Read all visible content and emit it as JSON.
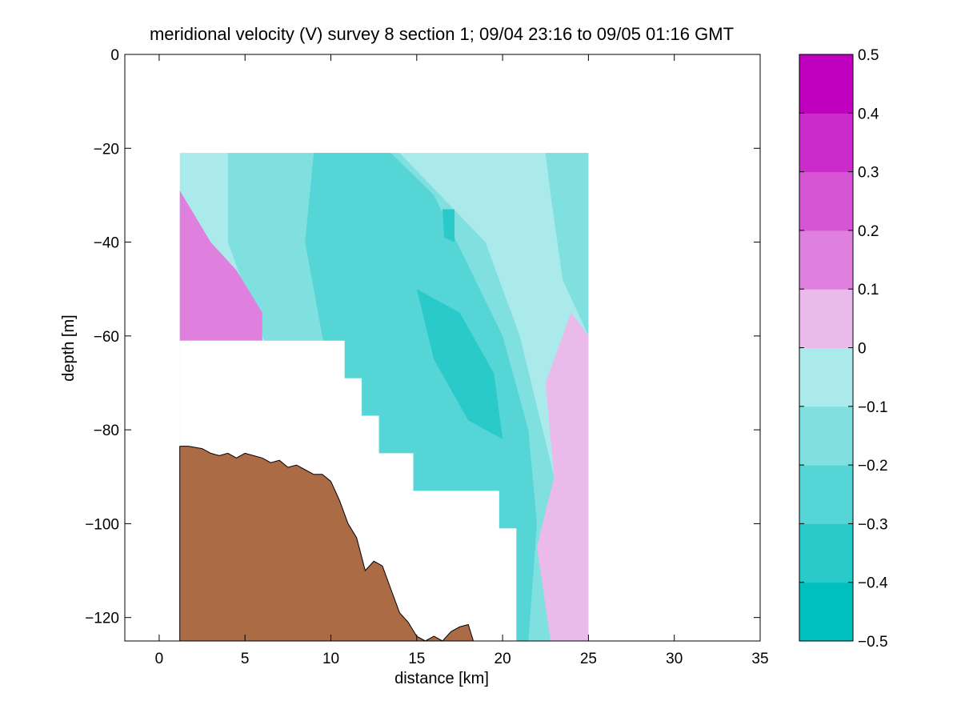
{
  "chart_data": {
    "type": "heatmap",
    "subtype": "filled-contour section",
    "title": "meridional velocity (V) survey 8 section 1; 09/04 23:16 to 09/05 01:16 GMT",
    "xlabel": "distance [km]",
    "ylabel": "depth [m]",
    "xlim": [
      -2,
      35
    ],
    "ylim": [
      -125,
      0
    ],
    "x_ticks": [
      0,
      5,
      10,
      15,
      20,
      25,
      30,
      35
    ],
    "y_ticks": [
      0,
      -20,
      -40,
      -60,
      -80,
      -100,
      -120
    ],
    "grid": false,
    "data_extent": {
      "x": [
        1.2,
        25
      ],
      "y": [
        -125,
        -21
      ]
    },
    "colorbar": {
      "ticks": [
        0.5,
        0.4,
        0.3,
        0.2,
        0.1,
        0,
        -0.1,
        -0.2,
        -0.3,
        -0.4,
        -0.5
      ],
      "levels": [
        -0.5,
        -0.4,
        -0.3,
        -0.2,
        -0.1,
        0,
        0.1,
        0.2,
        0.3,
        0.4,
        0.5
      ],
      "colors": [
        "#00bfbf",
        "#2bcaca",
        "#55d5d5",
        "#80dfdf",
        "#aaeaea",
        "#eabaea",
        "#df80df",
        "#d555d5",
        "#ca2bca",
        "#bf00bf"
      ],
      "nodata_color": "#ffffff"
    },
    "regions": [
      {
        "level": -0.1,
        "points": [
          [
            1.2,
            -21
          ],
          [
            25,
            -21
          ],
          [
            25,
            -125
          ],
          [
            1.2,
            -125
          ]
        ]
      },
      {
        "level": -0.2,
        "points": [
          [
            4,
            -21
          ],
          [
            14,
            -21
          ],
          [
            19,
            -40
          ],
          [
            21,
            -60
          ],
          [
            23,
            -90
          ],
          [
            25,
            -110
          ],
          [
            25,
            -125
          ],
          [
            12,
            -125
          ],
          [
            10,
            -90
          ],
          [
            6,
            -60
          ],
          [
            4,
            -40
          ]
        ]
      },
      {
        "level": -0.2,
        "points": [
          [
            22.5,
            -21
          ],
          [
            25,
            -21
          ],
          [
            25,
            -60
          ],
          [
            23.5,
            -48
          ],
          [
            22.8,
            -30
          ]
        ]
      },
      {
        "level": -0.3,
        "points": [
          [
            9,
            -21
          ],
          [
            13.5,
            -21
          ],
          [
            16,
            -30
          ],
          [
            18,
            -45
          ],
          [
            20,
            -60
          ],
          [
            21.5,
            -80
          ],
          [
            22,
            -100
          ],
          [
            21.5,
            -125
          ],
          [
            15,
            -125
          ],
          [
            13,
            -100
          ],
          [
            11,
            -80
          ],
          [
            9.5,
            -60
          ],
          [
            8.5,
            -40
          ]
        ]
      },
      {
        "level": -0.4,
        "points": [
          [
            15,
            -50
          ],
          [
            17.5,
            -55
          ],
          [
            19.5,
            -68
          ],
          [
            20,
            -82
          ],
          [
            18,
            -78
          ],
          [
            16,
            -65
          ]
        ]
      },
      {
        "level": -0.4,
        "points": [
          [
            16.5,
            -33
          ],
          [
            17.2,
            -33
          ],
          [
            17.2,
            -40
          ],
          [
            16.6,
            -39
          ]
        ]
      },
      {
        "level": 0.1,
        "points": [
          [
            1.2,
            -29
          ],
          [
            3,
            -40
          ],
          [
            4.5,
            -46
          ],
          [
            6,
            -55
          ],
          [
            6,
            -61
          ],
          [
            1.2,
            -61
          ]
        ]
      },
      {
        "level": 0,
        "points": [
          [
            22.5,
            -70
          ],
          [
            24,
            -55
          ],
          [
            25,
            -60
          ],
          [
            25,
            -125
          ],
          [
            22.8,
            -125
          ],
          [
            22,
            -105
          ],
          [
            23,
            -90
          ]
        ]
      }
    ],
    "nodata_mask": [
      [
        1.2,
        -61
      ],
      [
        10.8,
        -61
      ],
      [
        10.8,
        -69
      ],
      [
        11.8,
        -69
      ],
      [
        11.8,
        -77
      ],
      [
        12.8,
        -77
      ],
      [
        12.8,
        -85
      ],
      [
        14.8,
        -85
      ],
      [
        14.8,
        -93
      ],
      [
        19.8,
        -93
      ],
      [
        19.8,
        -101
      ],
      [
        20.8,
        -101
      ],
      [
        20.8,
        -125
      ],
      [
        1.2,
        -125
      ]
    ],
    "bathymetry": {
      "color": "#aa6b45",
      "profile": [
        [
          1.2,
          -83.5
        ],
        [
          1.7,
          -83.5
        ],
        [
          2.5,
          -84
        ],
        [
          3,
          -85
        ],
        [
          3.5,
          -85.5
        ],
        [
          4,
          -85
        ],
        [
          4.5,
          -86
        ],
        [
          5,
          -85
        ],
        [
          5.5,
          -85.5
        ],
        [
          6,
          -86
        ],
        [
          6.5,
          -87
        ],
        [
          7,
          -86.5
        ],
        [
          7.5,
          -88
        ],
        [
          8,
          -87.5
        ],
        [
          8.5,
          -88.5
        ],
        [
          9,
          -89.5
        ],
        [
          9.5,
          -89.5
        ],
        [
          10,
          -91
        ],
        [
          10.5,
          -95
        ],
        [
          11,
          -100
        ],
        [
          11.5,
          -103
        ],
        [
          12,
          -110
        ],
        [
          12.5,
          -108
        ],
        [
          13,
          -109
        ],
        [
          13.5,
          -114
        ],
        [
          14,
          -119
        ],
        [
          14.5,
          -121
        ],
        [
          15,
          -124
        ],
        [
          15.5,
          -125
        ],
        [
          16,
          -124
        ],
        [
          16.5,
          -125
        ],
        [
          17,
          -123
        ],
        [
          17.5,
          -122
        ],
        [
          18,
          -121.5
        ],
        [
          18.3,
          -125
        ]
      ]
    }
  }
}
